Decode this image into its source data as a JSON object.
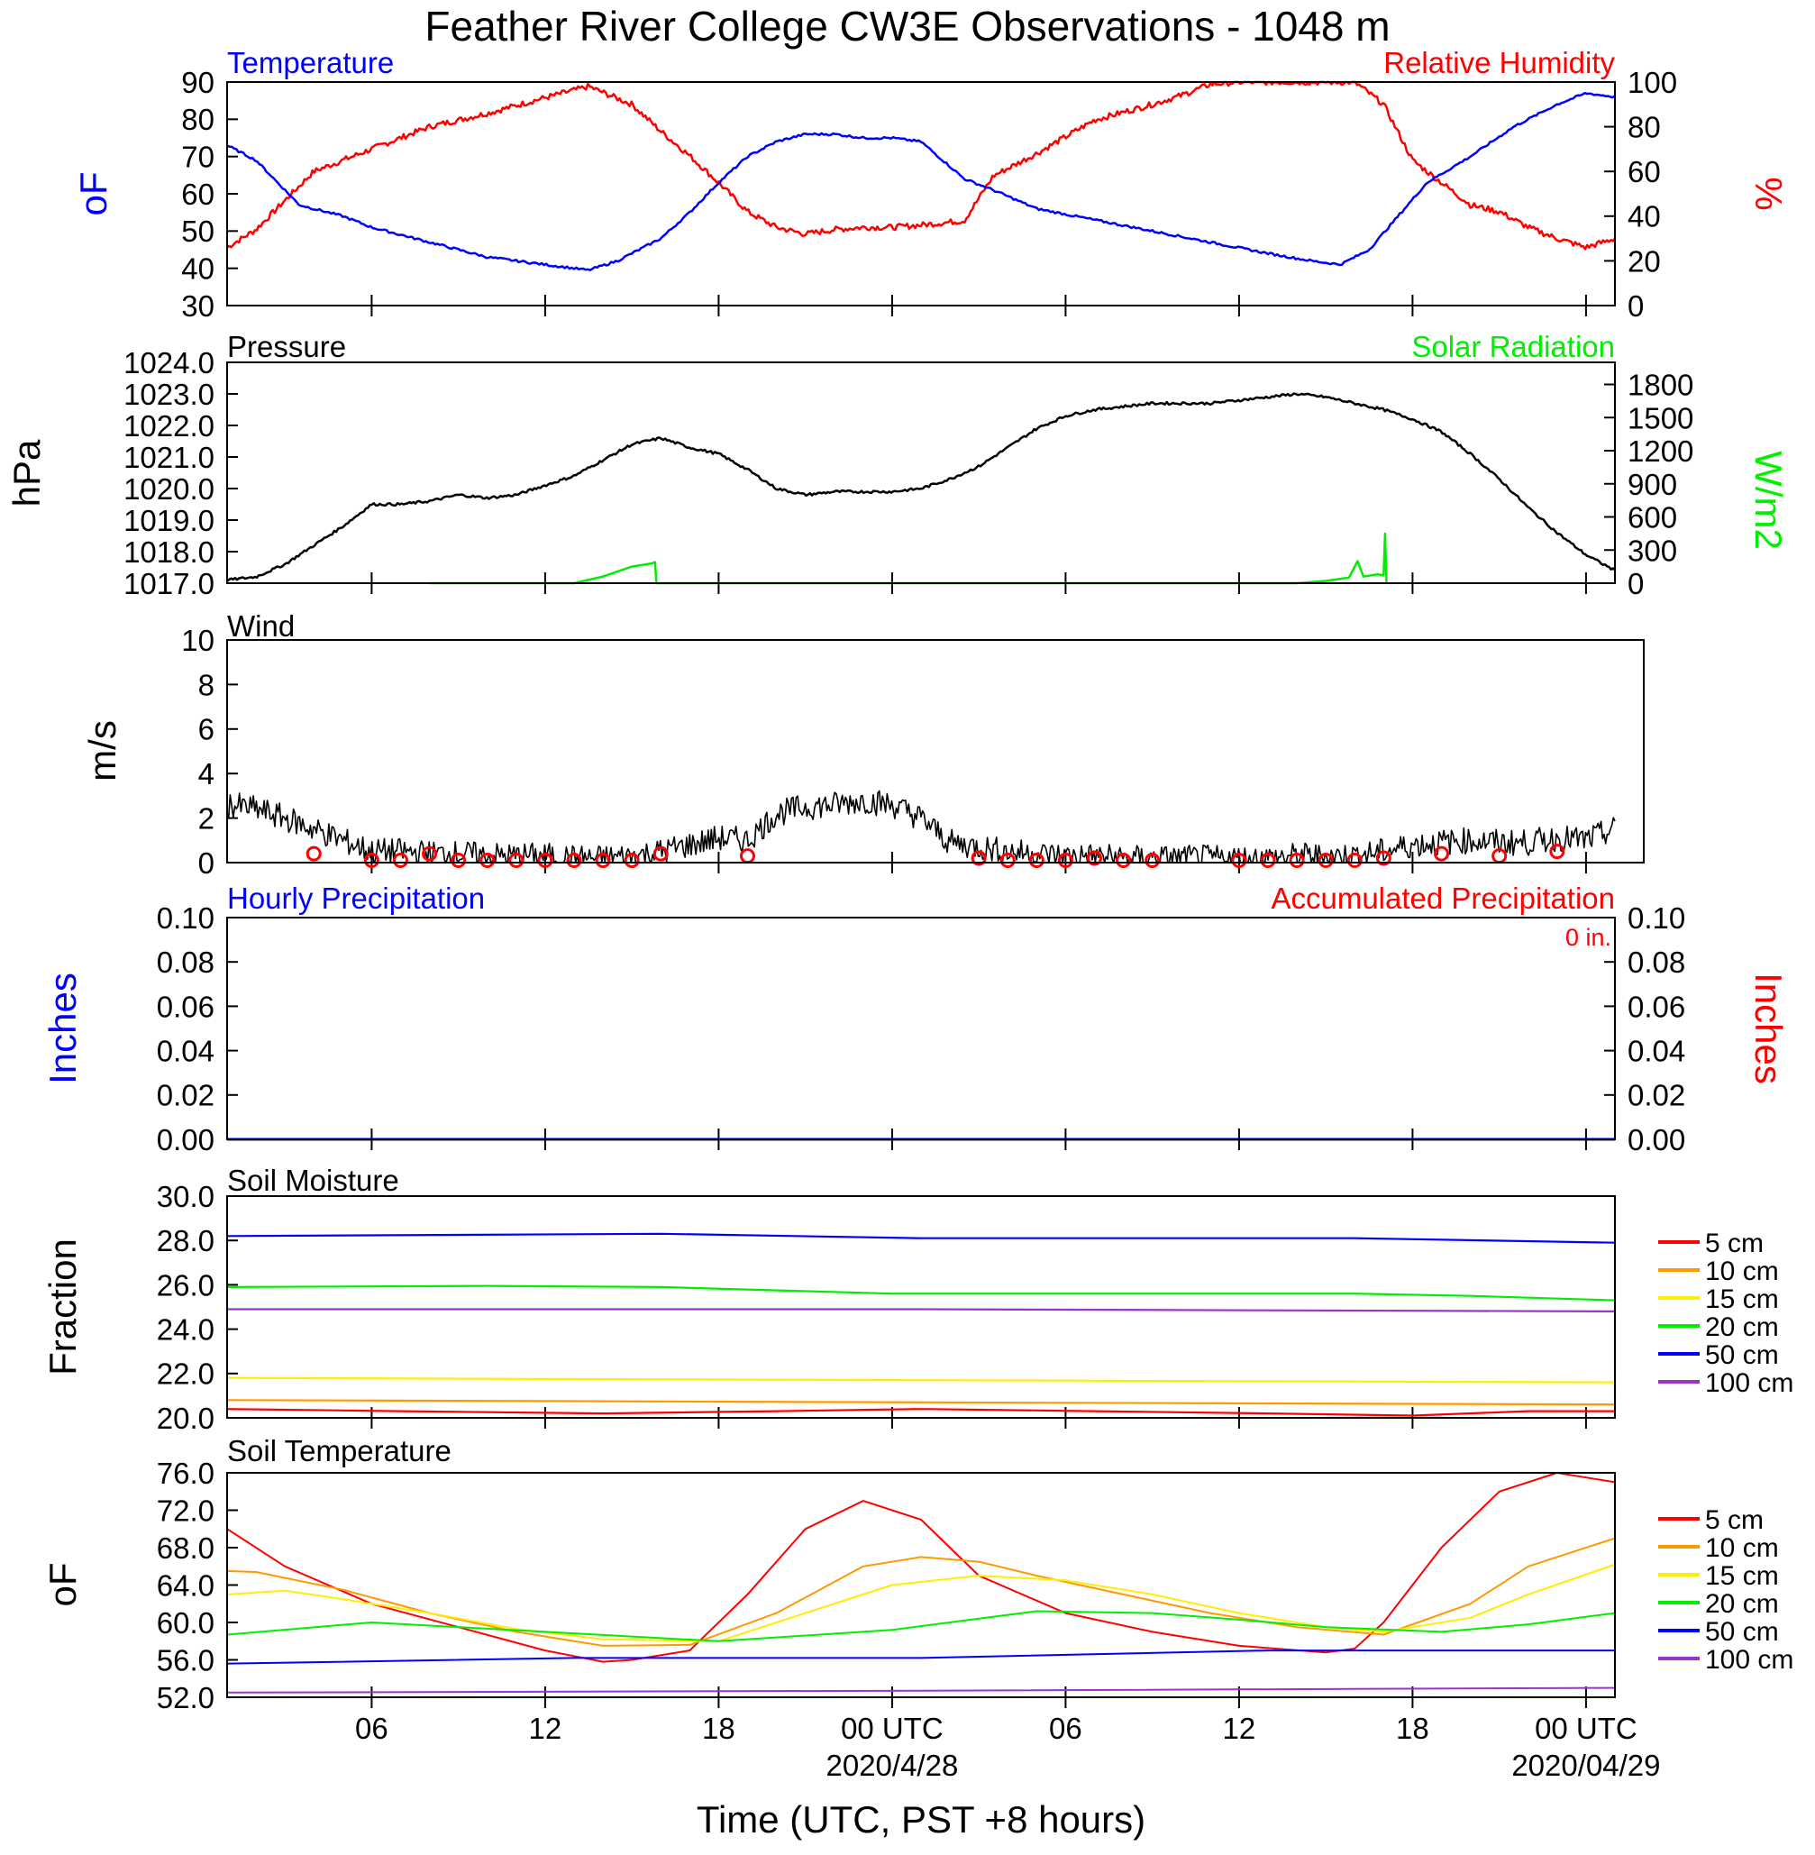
{
  "title": "Feather River College CW3E Observations - 1048 m",
  "x_axis": {
    "label": "Time (UTC, PST +8 hours)",
    "ticks": [
      "06",
      "12",
      "18",
      "00 UTC",
      "06",
      "12",
      "18",
      "00 UTC"
    ],
    "tick_hours": [
      6,
      12,
      18,
      24,
      30,
      36,
      42,
      48
    ],
    "date_labels": [
      "2020/4/28",
      "2020/04/29"
    ],
    "date_hours": [
      24,
      48
    ],
    "range_hours": [
      1,
      49
    ]
  },
  "colors": {
    "black": "#000000",
    "blue": "#0000ff",
    "red": "#ff0000",
    "green": "#00ee00",
    "orange": "#ff9900",
    "yellow": "#ffee00",
    "purple": "#9933cc"
  },
  "panels": {
    "temp_rh": {
      "left_title": "Temperature",
      "right_title": "Relative Humidity",
      "left_unit": "oF",
      "right_unit": "%",
      "left_ticks": [
        "90",
        "80",
        "70",
        "60",
        "50",
        "40",
        "30"
      ],
      "right_ticks": [
        "100",
        "80",
        "60",
        "40",
        "20",
        "0"
      ]
    },
    "pressure": {
      "left_title": "Pressure",
      "right_title": "Solar Radiation",
      "left_unit": "hPa",
      "right_unit": "W/m2",
      "left_ticks": [
        "1024.0",
        "1023.0",
        "1022.0",
        "1021.0",
        "1020.0",
        "1019.0",
        "1018.0",
        "1017.0"
      ],
      "right_ticks": [
        "1800",
        "1500",
        "1200",
        "900",
        "600",
        "300",
        "0"
      ]
    },
    "wind": {
      "title": "Wind",
      "unit": "m/s",
      "ticks": [
        "10",
        "8",
        "6",
        "4",
        "2",
        "0"
      ]
    },
    "precip": {
      "left_title": "Hourly Precipitation",
      "right_title": "Accumulated Precipitation",
      "accum_value": "0 in.",
      "left_unit": "Inches",
      "right_unit": "Inches",
      "left_ticks": [
        "0.10",
        "0.08",
        "0.06",
        "0.04",
        "0.02",
        "0.00"
      ],
      "right_ticks": [
        "0.10",
        "0.08",
        "0.06",
        "0.04",
        "0.02",
        "0.00"
      ]
    },
    "soil_moisture": {
      "title": "Soil Moisture",
      "unit": "Fraction",
      "ticks": [
        "30.0",
        "28.0",
        "26.0",
        "24.0",
        "22.0",
        "20.0"
      ],
      "legend": [
        "5 cm",
        "10 cm",
        "15 cm",
        "20 cm",
        "50 cm",
        "100 cm"
      ]
    },
    "soil_temp": {
      "title": "Soil Temperature",
      "unit": "oF",
      "ticks": [
        "76.0",
        "72.0",
        "68.0",
        "64.0",
        "60.0",
        "56.0",
        "52.0"
      ],
      "legend": [
        "5 cm",
        "10 cm",
        "15 cm",
        "20 cm",
        "50 cm",
        "100 cm"
      ]
    }
  },
  "chart_data": [
    {
      "type": "line",
      "x_unit": "hours since 2020-04-27 00 UTC",
      "ylim_left": [
        30,
        90
      ],
      "ylim_right": [
        0,
        100
      ],
      "series": [
        {
          "name": "Temperature",
          "axis": "left",
          "color": "#0000ff",
          "x": [
            1,
            2,
            2.5,
            3.5,
            5,
            6,
            8,
            10,
            12,
            13,
            13.5,
            14.5,
            16,
            17,
            18,
            19,
            20,
            21,
            22,
            23,
            24,
            25,
            26.5,
            27.5,
            29,
            31,
            33,
            35,
            37,
            38.5,
            39.5,
            40.5,
            41.5,
            42.5,
            44,
            45.5,
            47,
            48,
            49
          ],
          "y": [
            73,
            69,
            65,
            57,
            54,
            51,
            47,
            43,
            41,
            40,
            39.5,
            42,
            48,
            55,
            63,
            70,
            74,
            76,
            76,
            75,
            75,
            74,
            64,
            61,
            56,
            53,
            50,
            47,
            44,
            42,
            41,
            45,
            54,
            63,
            70,
            78,
            84,
            87,
            86
          ]
        },
        {
          "name": "Relative Humidity",
          "axis": "right",
          "color": "#ff0000",
          "x": [
            1,
            2,
            3,
            4,
            5,
            6,
            8,
            10,
            12,
            13.5,
            15,
            16,
            17,
            18,
            19,
            20,
            21,
            22,
            23,
            24,
            25,
            26.5,
            27.5,
            29,
            31,
            33,
            34,
            35,
            36,
            37,
            38,
            39,
            40,
            41,
            42,
            43,
            44,
            45,
            46,
            47,
            48,
            49
          ],
          "y": [
            26,
            34,
            47,
            60,
            65,
            70,
            80,
            86,
            93,
            98,
            90,
            78,
            67,
            55,
            42,
            35,
            32,
            34,
            35,
            35,
            36,
            38,
            58,
            68,
            83,
            90,
            94,
            99,
            100,
            100,
            100,
            100,
            100,
            90,
            65,
            55,
            45,
            42,
            35,
            30,
            26,
            30
          ]
        }
      ]
    },
    {
      "type": "line",
      "x_unit": "hours since 2020-04-27 00 UTC",
      "ylim_left": [
        1017,
        1024
      ],
      "ylim_right": [
        0,
        2000
      ],
      "series": [
        {
          "name": "Pressure",
          "axis": "left",
          "color": "#000000",
          "x": [
            1,
            2,
            3,
            4,
            5,
            6,
            7,
            8,
            9,
            10,
            11,
            12,
            13,
            14,
            15,
            16,
            17,
            18,
            19,
            20,
            21,
            22,
            23,
            24,
            25,
            26,
            27,
            28,
            29,
            30,
            31,
            32,
            33,
            34,
            35,
            36,
            37,
            38,
            39,
            40,
            41,
            42,
            43,
            44,
            45,
            46,
            47,
            48,
            49
          ],
          "y": [
            1017.1,
            1017.2,
            1017.6,
            1018.2,
            1018.8,
            1019.5,
            1019.5,
            1019.6,
            1019.8,
            1019.7,
            1019.8,
            1020.1,
            1020.4,
            1020.9,
            1021.4,
            1021.6,
            1021.3,
            1021.1,
            1020.6,
            1020.0,
            1019.8,
            1019.9,
            1019.9,
            1019.9,
            1020.0,
            1020.3,
            1020.7,
            1021.3,
            1021.9,
            1022.3,
            1022.5,
            1022.6,
            1022.7,
            1022.7,
            1022.7,
            1022.8,
            1022.9,
            1023.0,
            1022.9,
            1022.7,
            1022.5,
            1022.2,
            1021.8,
            1021.1,
            1020.3,
            1019.4,
            1018.6,
            1017.9,
            1017.4
          ]
        },
        {
          "name": "Solar Radiation",
          "axis": "right",
          "color": "#00ee00",
          "x": [
            8,
            10,
            12,
            13,
            14,
            15,
            15.7,
            15.8,
            15.85,
            33.5,
            36,
            38,
            39,
            39.8,
            40.1,
            40.3,
            40.8,
            41,
            41.05,
            41.1
          ],
          "y": [
            0,
            0,
            0,
            0,
            60,
            150,
            180,
            190,
            0,
            0,
            0,
            0,
            20,
            50,
            200,
            60,
            80,
            70,
            450,
            0
          ]
        }
      ]
    },
    {
      "type": "line",
      "x_unit": "hours since 2020-04-27 00 UTC",
      "ylim": [
        0,
        10
      ],
      "series": [
        {
          "name": "Wind",
          "color": "#000000",
          "x": [
            1,
            2,
            3,
            4,
            5,
            6,
            7,
            8,
            9,
            10,
            11,
            12,
            13,
            14,
            15,
            16,
            17,
            18,
            19,
            20,
            21,
            22,
            23,
            24,
            25,
            26,
            27,
            28,
            29,
            30,
            31,
            32,
            33,
            34,
            35,
            36,
            37,
            38,
            39,
            40,
            41,
            42,
            43,
            44,
            45,
            46,
            47,
            48,
            49
          ],
          "y": [
            2.6,
            2.4,
            2.0,
            1.5,
            1.0,
            0.5,
            0.5,
            0.4,
            0.4,
            0.3,
            0.3,
            0.3,
            0.2,
            0.2,
            0.3,
            0.5,
            0.8,
            1.1,
            1.0,
            2.2,
            2.5,
            2.6,
            2.8,
            2.6,
            2.0,
            0.9,
            0.7,
            0.5,
            0.4,
            0.3,
            0.3,
            0.2,
            0.2,
            0.2,
            0.2,
            0.2,
            0.2,
            0.3,
            0.3,
            0.3,
            0.5,
            0.8,
            0.9,
            1.0,
            0.9,
            0.9,
            1.1,
            1.0,
            1.5
          ]
        },
        {
          "name": "Direction markers",
          "color": "#ff0000",
          "x": [
            4,
            6,
            7,
            8,
            9,
            10,
            11,
            12,
            13,
            14,
            15,
            16,
            19,
            27,
            28,
            29,
            30,
            31,
            32,
            33,
            36,
            37,
            38,
            39,
            40,
            41,
            43,
            45,
            47
          ],
          "y": [
            0.4,
            0.1,
            0.1,
            0.4,
            0.1,
            0.1,
            0.1,
            0.1,
            0.1,
            0.1,
            0.1,
            0.4,
            0.3,
            0.2,
            0.1,
            0.1,
            0.1,
            0.2,
            0.1,
            0.1,
            0.1,
            0.1,
            0.1,
            0.1,
            0.1,
            0.2,
            0.4,
            0.3,
            0.5
          ]
        }
      ]
    },
    {
      "type": "line",
      "x_unit": "hours since 2020-04-27 00 UTC",
      "ylim_left": [
        0,
        0.1
      ],
      "ylim_right": [
        0,
        0.1
      ],
      "series": [
        {
          "name": "Hourly Precipitation",
          "color": "#0000ff",
          "x": [
            1,
            49
          ],
          "y": [
            0,
            0
          ]
        },
        {
          "name": "Accumulated Precipitation",
          "color": "#ff0000",
          "x": [
            1,
            49
          ],
          "y": [
            0,
            0
          ]
        }
      ]
    },
    {
      "type": "line",
      "x_unit": "hours since 2020-04-27 00 UTC",
      "ylim": [
        20,
        30
      ],
      "series": [
        {
          "name": "5 cm",
          "color": "#ff0000",
          "x": [
            1,
            7,
            14,
            20,
            25,
            31,
            37,
            42,
            46,
            49
          ],
          "y": [
            20.4,
            20.3,
            20.2,
            20.3,
            20.4,
            20.3,
            20.2,
            20.1,
            20.3,
            20.3
          ]
        },
        {
          "name": "10 cm",
          "color": "#ff9900",
          "x": [
            1,
            13,
            25,
            37,
            49
          ],
          "y": [
            20.8,
            20.75,
            20.7,
            20.65,
            20.6
          ]
        },
        {
          "name": "15 cm",
          "color": "#ffee00",
          "x": [
            1,
            13,
            25,
            37,
            49
          ],
          "y": [
            21.8,
            21.75,
            21.7,
            21.65,
            21.6
          ]
        },
        {
          "name": "20 cm",
          "color": "#00ee00",
          "x": [
            1,
            10,
            16,
            24,
            34,
            40,
            44,
            49
          ],
          "y": [
            25.9,
            25.95,
            25.9,
            25.6,
            25.6,
            25.6,
            25.5,
            25.3
          ]
        },
        {
          "name": "50 cm",
          "color": "#0000ff",
          "x": [
            1,
            16,
            25,
            40,
            49
          ],
          "y": [
            28.2,
            28.3,
            28.1,
            28.1,
            27.9
          ]
        },
        {
          "name": "100 cm",
          "color": "#9933cc",
          "x": [
            1,
            25,
            49
          ],
          "y": [
            24.9,
            24.9,
            24.8
          ]
        }
      ]
    },
    {
      "type": "line",
      "x_unit": "hours since 2020-04-27 00 UTC",
      "ylim": [
        52,
        76
      ],
      "series": [
        {
          "name": "5 cm",
          "color": "#ff0000",
          "x": [
            1,
            3,
            6,
            9,
            12,
            14,
            15,
            17,
            19,
            21,
            23,
            25,
            27,
            30,
            33,
            36,
            39,
            40,
            41,
            43,
            45,
            47,
            48,
            49
          ],
          "y": [
            70,
            66,
            62,
            59.5,
            57,
            55.8,
            56,
            57,
            63,
            70,
            73,
            71,
            65,
            61,
            59,
            57.5,
            56.8,
            57.2,
            60,
            68,
            74,
            76,
            75.5,
            75
          ]
        },
        {
          "name": "10 cm",
          "color": "#ff9900",
          "x": [
            1,
            2,
            5,
            8,
            11,
            14,
            17,
            20,
            23,
            25,
            27,
            29,
            32,
            35,
            38,
            41,
            44,
            46,
            49
          ],
          "y": [
            65.5,
            65.4,
            63.5,
            61,
            59,
            57.5,
            57.6,
            61,
            66,
            67,
            66.5,
            65,
            63,
            61,
            59.5,
            58.7,
            62,
            66,
            69
          ]
        },
        {
          "name": "15 cm",
          "color": "#ffee00",
          "x": [
            1,
            3,
            5,
            8,
            11,
            14,
            18,
            21,
            24,
            27,
            30,
            33,
            36,
            39,
            41,
            44,
            46,
            49
          ],
          "y": [
            63,
            63.4,
            62.5,
            61,
            59.3,
            58.2,
            58,
            61,
            64,
            65,
            64.5,
            63,
            61,
            59.5,
            59,
            60.5,
            63,
            66.2
          ]
        },
        {
          "name": "20 cm",
          "color": "#00ee00",
          "x": [
            1,
            6,
            12,
            18,
            24,
            29,
            33,
            36,
            39,
            43,
            46,
            49
          ],
          "y": [
            58.7,
            60,
            59,
            58,
            59.2,
            61.2,
            61,
            60.3,
            59.5,
            59,
            59.8,
            61
          ]
        },
        {
          "name": "50 cm",
          "color": "#0000ff",
          "x": [
            1,
            13,
            25,
            37,
            49
          ],
          "y": [
            55.6,
            56.2,
            56.2,
            57,
            57
          ]
        },
        {
          "name": "100 cm",
          "color": "#9933cc",
          "x": [
            1,
            25,
            49
          ],
          "y": [
            52.5,
            52.7,
            53
          ]
        }
      ]
    }
  ]
}
